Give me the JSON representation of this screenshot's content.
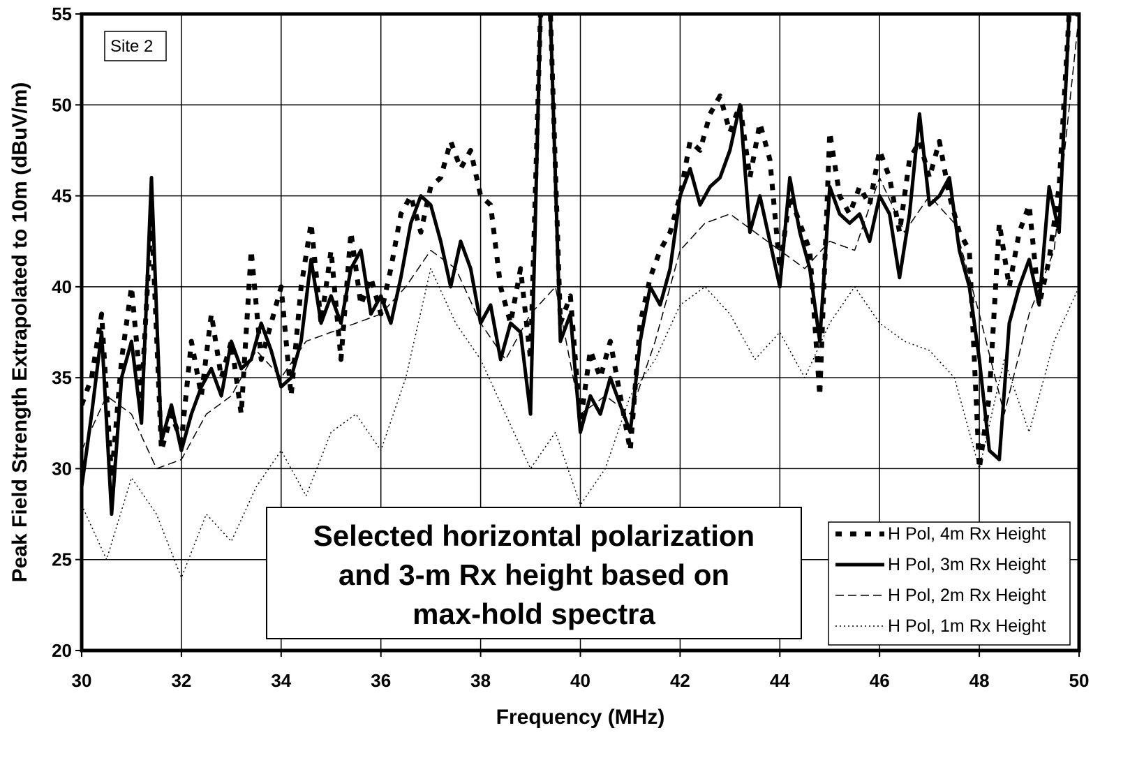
{
  "chart_data": {
    "type": "line",
    "xlabel": "Frequency (MHz)",
    "ylabel": "Peak Field Strength Extrapolated to 10m (dBuV/m)",
    "xlim": [
      30,
      50
    ],
    "ylim": [
      20,
      55
    ],
    "x_ticks": [
      "30",
      "32",
      "34",
      "36",
      "38",
      "40",
      "42",
      "44",
      "46",
      "48",
      "50"
    ],
    "y_ticks": [
      "20",
      "25",
      "30",
      "35",
      "40",
      "45",
      "50",
      "55"
    ],
    "grid": true,
    "legend_position": "bottom-right",
    "site_label": "Site 2",
    "annotation": [
      "Selected horizontal polarization",
      "and 3-m Rx height based on",
      "max-hold spectra"
    ],
    "series": [
      {
        "name": "H Pol, 4m Rx Height",
        "style": "dashed-thick",
        "x": [
          30.0,
          30.2,
          30.4,
          30.6,
          30.8,
          31.0,
          31.2,
          31.4,
          31.6,
          31.8,
          32.0,
          32.2,
          32.4,
          32.6,
          32.8,
          33.0,
          33.2,
          33.4,
          33.6,
          33.8,
          34.0,
          34.2,
          34.4,
          34.6,
          34.8,
          35.0,
          35.2,
          35.4,
          35.6,
          35.8,
          36.0,
          36.2,
          36.4,
          36.6,
          36.8,
          37.0,
          37.2,
          37.4,
          37.6,
          37.8,
          38.0,
          38.2,
          38.4,
          38.6,
          38.8,
          39.0,
          39.2,
          39.4,
          39.6,
          39.8,
          40.0,
          40.2,
          40.4,
          40.6,
          40.8,
          41.0,
          41.2,
          41.4,
          41.6,
          41.8,
          42.0,
          42.2,
          42.4,
          42.6,
          42.8,
          43.0,
          43.2,
          43.4,
          43.6,
          43.8,
          44.0,
          44.2,
          44.4,
          44.6,
          44.8,
          45.0,
          45.2,
          45.4,
          45.6,
          45.8,
          46.0,
          46.2,
          46.4,
          46.6,
          46.8,
          47.0,
          47.2,
          47.4,
          47.6,
          47.8,
          48.0,
          48.2,
          48.4,
          48.6,
          48.8,
          49.0,
          49.2,
          49.4,
          49.6,
          49.8,
          50.0
        ],
        "values": [
          33.5,
          35.0,
          38.5,
          29.5,
          36.0,
          40.0,
          34.0,
          44.0,
          31.0,
          33.0,
          31.5,
          37.0,
          34.0,
          38.5,
          35.0,
          37.0,
          33.0,
          42.0,
          36.0,
          38.0,
          40.0,
          34.0,
          40.0,
          43.5,
          38.0,
          42.0,
          36.0,
          43.0,
          39.0,
          40.5,
          38.5,
          41.0,
          44.0,
          45.0,
          43.0,
          45.5,
          46.0,
          48.0,
          46.5,
          47.5,
          45.0,
          44.5,
          40.0,
          38.0,
          41.0,
          36.0,
          55.0,
          55.0,
          38.0,
          39.5,
          32.5,
          36.5,
          35.0,
          37.0,
          34.0,
          31.0,
          38.0,
          40.5,
          42.0,
          43.0,
          45.0,
          48.0,
          47.5,
          49.5,
          50.5,
          48.5,
          50.0,
          46.0,
          49.0,
          47.0,
          41.0,
          45.0,
          43.5,
          42.0,
          34.0,
          48.5,
          45.0,
          44.0,
          45.5,
          44.5,
          47.5,
          46.0,
          43.0,
          47.0,
          48.0,
          46.0,
          48.0,
          45.0,
          43.0,
          42.0,
          30.0,
          34.0,
          43.5,
          40.0,
          43.0,
          44.5,
          39.0,
          41.5,
          45.5,
          55.0,
          55.0
        ]
      },
      {
        "name": "H Pol, 3m Rx Height",
        "style": "solid-thick",
        "x": [
          30.0,
          30.2,
          30.4,
          30.6,
          30.8,
          31.0,
          31.2,
          31.4,
          31.6,
          31.8,
          32.0,
          32.2,
          32.4,
          32.6,
          32.8,
          33.0,
          33.2,
          33.4,
          33.6,
          33.8,
          34.0,
          34.2,
          34.4,
          34.6,
          34.8,
          35.0,
          35.2,
          35.4,
          35.6,
          35.8,
          36.0,
          36.2,
          36.4,
          36.6,
          36.8,
          37.0,
          37.2,
          37.4,
          37.6,
          37.8,
          38.0,
          38.2,
          38.4,
          38.6,
          38.8,
          39.0,
          39.2,
          39.4,
          39.6,
          39.8,
          40.0,
          40.2,
          40.4,
          40.6,
          40.8,
          41.0,
          41.2,
          41.4,
          41.6,
          41.8,
          42.0,
          42.2,
          42.4,
          42.6,
          42.8,
          43.0,
          43.2,
          43.4,
          43.6,
          43.8,
          44.0,
          44.2,
          44.4,
          44.6,
          44.8,
          45.0,
          45.2,
          45.4,
          45.6,
          45.8,
          46.0,
          46.2,
          46.4,
          46.6,
          46.8,
          47.0,
          47.2,
          47.4,
          47.6,
          47.8,
          48.0,
          48.2,
          48.4,
          48.6,
          48.8,
          49.0,
          49.2,
          49.4,
          49.6,
          49.8,
          50.0
        ],
        "values": [
          29.0,
          33.0,
          37.5,
          27.5,
          35.0,
          37.0,
          32.5,
          46.0,
          31.5,
          33.5,
          31.0,
          33.0,
          34.5,
          35.5,
          34.0,
          37.0,
          35.5,
          36.0,
          38.0,
          36.5,
          34.5,
          35.0,
          37.0,
          41.5,
          38.0,
          39.5,
          38.0,
          41.0,
          42.0,
          38.5,
          39.5,
          38.0,
          40.5,
          43.5,
          45.0,
          44.5,
          42.5,
          40.0,
          42.5,
          41.0,
          38.0,
          39.0,
          36.0,
          38.0,
          37.5,
          33.0,
          55.0,
          55.0,
          37.0,
          38.5,
          32.0,
          34.0,
          33.0,
          35.0,
          33.5,
          32.0,
          37.0,
          40.0,
          39.0,
          41.0,
          45.0,
          46.5,
          44.5,
          45.5,
          46.0,
          47.5,
          50.0,
          43.0,
          45.0,
          42.5,
          40.0,
          46.0,
          43.0,
          41.0,
          37.0,
          45.5,
          44.0,
          43.5,
          44.0,
          42.5,
          45.0,
          44.0,
          40.5,
          44.0,
          49.5,
          44.5,
          45.0,
          46.0,
          42.0,
          40.0,
          36.0,
          31.0,
          30.5,
          38.0,
          40.0,
          41.5,
          39.0,
          45.5,
          43.0,
          55.0,
          55.0
        ]
      },
      {
        "name": "H Pol, 2m Rx Height",
        "style": "dashed-thin",
        "x": [
          30.0,
          30.5,
          31.0,
          31.5,
          32.0,
          32.5,
          33.0,
          33.5,
          34.0,
          34.5,
          35.0,
          35.5,
          36.0,
          36.5,
          37.0,
          37.5,
          38.0,
          38.5,
          39.0,
          39.5,
          40.0,
          40.5,
          41.0,
          41.5,
          42.0,
          42.5,
          43.0,
          43.5,
          44.0,
          44.5,
          45.0,
          45.5,
          46.0,
          46.5,
          47.0,
          47.5,
          48.0,
          48.5,
          49.0,
          49.5,
          50.0
        ],
        "values": [
          31.0,
          34.0,
          33.0,
          30.0,
          30.5,
          33.0,
          34.0,
          36.5,
          35.0,
          37.0,
          37.5,
          38.0,
          38.5,
          40.0,
          42.0,
          41.0,
          38.0,
          36.0,
          38.5,
          40.0,
          33.0,
          34.0,
          33.0,
          37.0,
          42.0,
          43.5,
          44.0,
          43.0,
          42.0,
          41.0,
          42.5,
          42.0,
          46.0,
          43.0,
          45.0,
          43.5,
          38.5,
          33.0,
          38.5,
          42.0,
          55.0
        ]
      },
      {
        "name": "H Pol, 1m Rx Height",
        "style": "dotted-thin",
        "x": [
          30.0,
          30.5,
          31.0,
          31.5,
          32.0,
          32.5,
          33.0,
          33.5,
          34.0,
          34.5,
          35.0,
          35.5,
          36.0,
          36.5,
          37.0,
          37.5,
          38.0,
          38.5,
          39.0,
          39.5,
          40.0,
          40.5,
          41.0,
          41.5,
          42.0,
          42.5,
          43.0,
          43.5,
          44.0,
          44.5,
          45.0,
          45.5,
          46.0,
          46.5,
          47.0,
          47.5,
          48.0,
          48.5,
          49.0,
          49.5,
          50.0
        ],
        "values": [
          28.0,
          25.0,
          29.5,
          27.5,
          24.0,
          27.5,
          26.0,
          29.0,
          31.0,
          28.5,
          32.0,
          33.0,
          31.0,
          35.0,
          41.0,
          38.0,
          36.0,
          33.0,
          30.0,
          32.0,
          28.0,
          30.0,
          34.0,
          36.0,
          39.0,
          40.0,
          38.5,
          36.0,
          37.5,
          35.0,
          38.0,
          40.0,
          38.0,
          37.0,
          36.5,
          35.0,
          30.0,
          36.0,
          32.0,
          37.0,
          40.0
        ]
      }
    ]
  }
}
